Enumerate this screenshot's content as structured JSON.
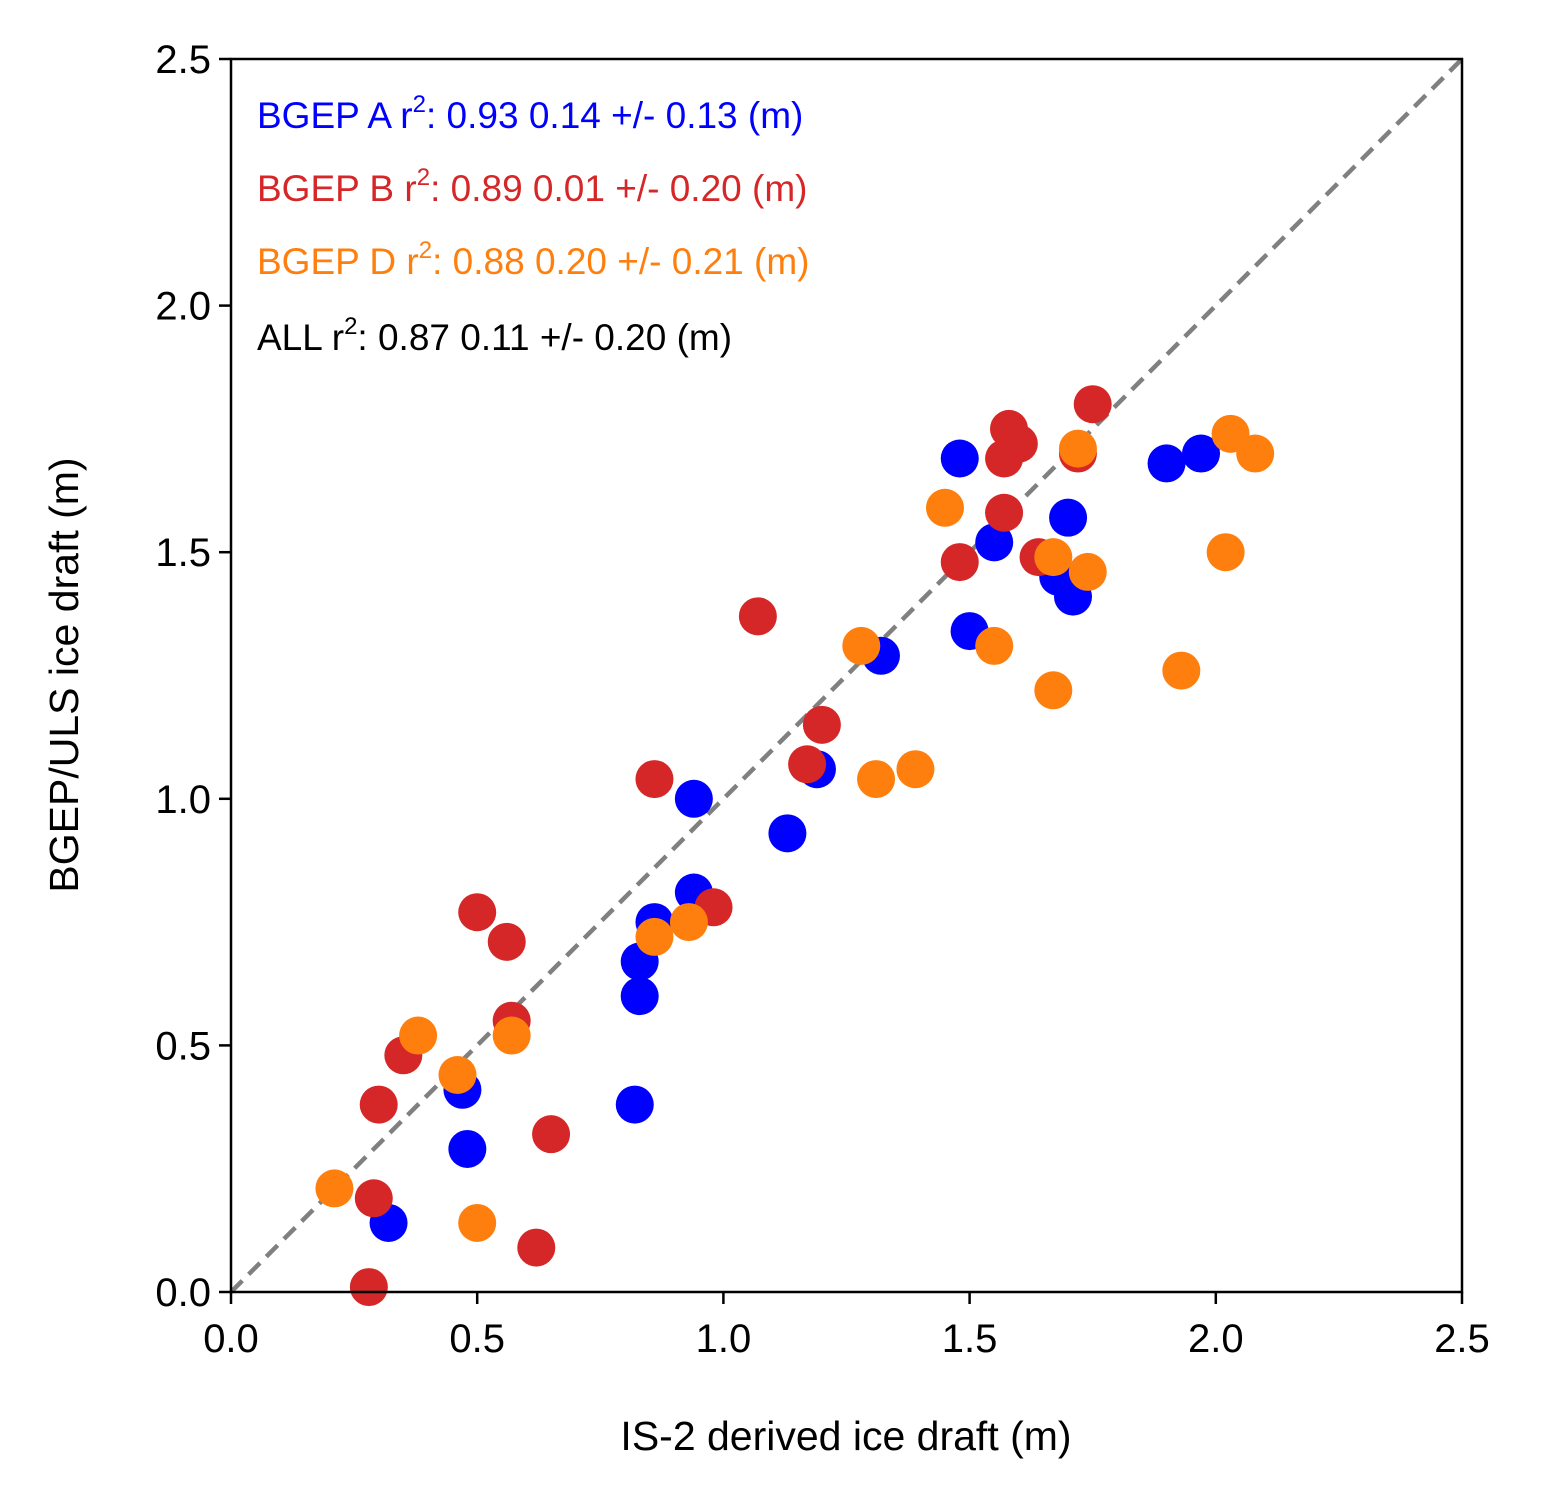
{
  "chart_data": {
    "type": "scatter",
    "xlabel": "IS-2 derived ice draft (m)",
    "ylabel": "BGEP/ULS ice draft (m)",
    "xlim": [
      0.0,
      2.5
    ],
    "ylim": [
      0.0,
      2.5
    ],
    "xticks": [
      "0.0",
      "0.5",
      "1.0",
      "1.5",
      "2.0",
      "2.5"
    ],
    "yticks": [
      "0.0",
      "0.5",
      "1.0",
      "1.5",
      "2.0",
      "2.5"
    ],
    "grid": false,
    "reference_line": {
      "type": "1:1",
      "style": "dashed",
      "color": "#808080"
    },
    "series": [
      {
        "name": "BGEP A",
        "color": "#0000ff",
        "x": [
          0.32,
          0.47,
          0.48,
          0.82,
          0.83,
          0.83,
          0.86,
          0.94,
          0.94,
          1.13,
          1.19,
          1.32,
          1.48,
          1.5,
          1.55,
          1.68,
          1.7,
          1.71,
          1.9,
          1.97
        ],
        "y": [
          0.14,
          0.41,
          0.29,
          0.38,
          0.6,
          0.67,
          0.75,
          0.81,
          1.0,
          0.93,
          1.06,
          1.29,
          1.69,
          1.34,
          1.52,
          1.45,
          1.57,
          1.41,
          1.68,
          1.7
        ]
      },
      {
        "name": "BGEP B",
        "color": "#d62728",
        "x": [
          0.28,
          0.29,
          0.3,
          0.35,
          0.5,
          0.56,
          0.57,
          0.62,
          0.65,
          0.86,
          0.98,
          1.07,
          1.17,
          1.2,
          1.48,
          1.57,
          1.57,
          1.58,
          1.6,
          1.64,
          1.72,
          1.75
        ],
        "y": [
          0.01,
          0.19,
          0.38,
          0.48,
          0.77,
          0.71,
          0.55,
          0.09,
          0.32,
          1.04,
          0.78,
          1.37,
          1.07,
          1.15,
          1.48,
          1.58,
          1.69,
          1.75,
          1.72,
          1.49,
          1.7,
          1.8
        ]
      },
      {
        "name": "BGEP D",
        "color": "#ff7f0e",
        "x": [
          0.21,
          0.38,
          0.46,
          0.5,
          0.57,
          0.86,
          0.93,
          1.28,
          1.31,
          1.39,
          1.45,
          1.55,
          1.67,
          1.67,
          1.72,
          1.74,
          1.93,
          2.02,
          2.03,
          2.08
        ],
        "y": [
          0.21,
          0.52,
          0.44,
          0.14,
          0.52,
          0.72,
          0.75,
          1.31,
          1.04,
          1.06,
          1.59,
          1.31,
          1.22,
          1.49,
          1.71,
          1.46,
          1.26,
          1.5,
          1.74,
          1.7
        ]
      }
    ],
    "annotations": [
      {
        "label": "BGEP A",
        "r2_label": "r",
        "r2_sup": "2",
        "r2_value": ": 0.93",
        "stats": "0.14 +/- 0.13 (m)",
        "color": "#0000ff"
      },
      {
        "label": "BGEP B",
        "r2_label": "r",
        "r2_sup": "2",
        "r2_value": ": 0.89",
        "stats": "0.01 +/- 0.20 (m)",
        "color": "#d62728"
      },
      {
        "label": "BGEP D",
        "r2_label": "r",
        "r2_sup": "2",
        "r2_value": ": 0.88",
        "stats": "0.20 +/- 0.21 (m)",
        "color": "#ff7f0e"
      },
      {
        "label": "ALL",
        "r2_label": "r",
        "r2_sup": "2",
        "r2_value": ": 0.87",
        "stats": "0.11 +/- 0.20 (m)",
        "color": "#000000"
      }
    ]
  }
}
